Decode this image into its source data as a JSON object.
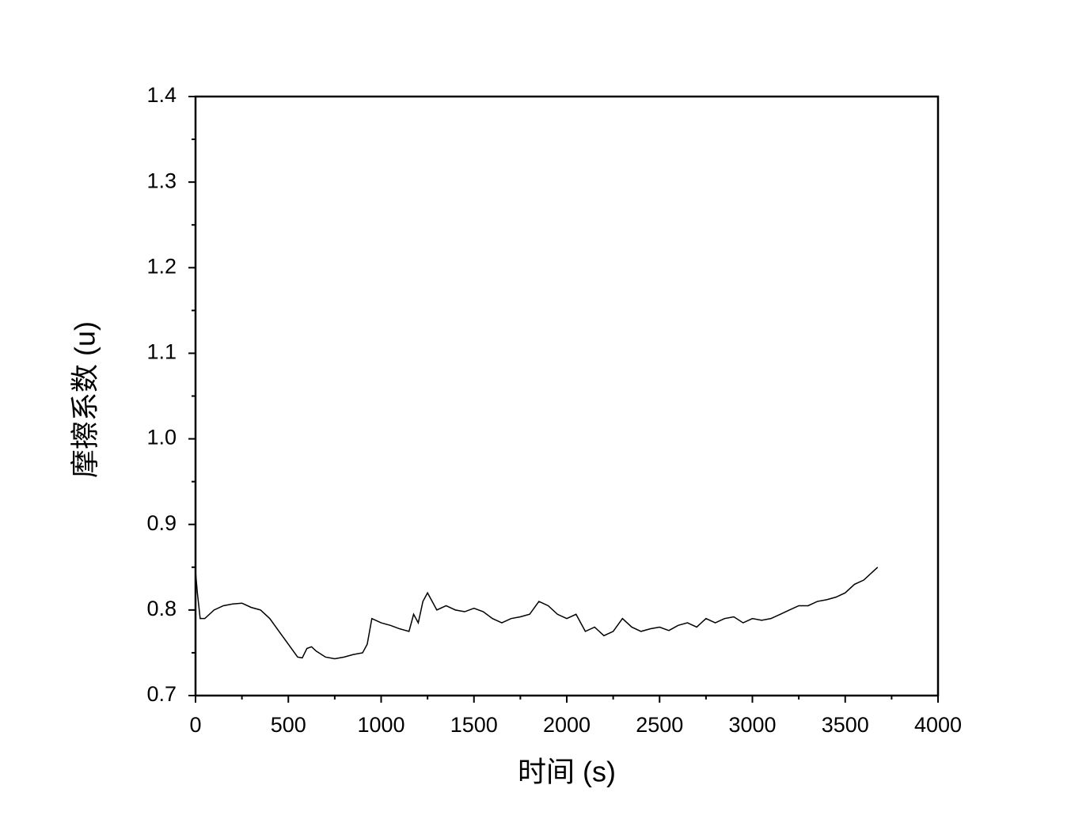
{
  "chart_data": {
    "type": "line",
    "xlabel": "时间 (s)",
    "ylabel": "摩擦系数 (u)",
    "xlim": [
      0,
      4000
    ],
    "ylim": [
      0.7,
      1.4
    ],
    "xticks": [
      0,
      500,
      1000,
      1500,
      2000,
      2500,
      3000,
      3500,
      4000
    ],
    "yticks": [
      0.7,
      0.8,
      0.9,
      {
        "value": 1,
        "label": "1.0"
      },
      1.1,
      1.2,
      1.3,
      1.4
    ],
    "xminorticks": [
      250,
      750,
      1250,
      1750,
      2250,
      2750,
      3250,
      3750
    ],
    "yminorticks": [
      0.75,
      0.85,
      0.95,
      1.05,
      1.15,
      1.25,
      1.35
    ],
    "x": [
      0,
      10,
      25,
      50,
      100,
      150,
      200,
      250,
      300,
      350,
      400,
      450,
      500,
      550,
      575,
      600,
      625,
      650,
      700,
      750,
      800,
      850,
      900,
      925,
      950,
      1000,
      1050,
      1100,
      1150,
      1175,
      1200,
      1225,
      1250,
      1300,
      1350,
      1400,
      1450,
      1500,
      1550,
      1600,
      1650,
      1700,
      1750,
      1800,
      1850,
      1900,
      1950,
      2000,
      2050,
      2100,
      2150,
      2200,
      2250,
      2300,
      2350,
      2400,
      2450,
      2500,
      2550,
      2600,
      2650,
      2700,
      2750,
      2800,
      2850,
      2900,
      2950,
      3000,
      3050,
      3100,
      3150,
      3200,
      3250,
      3300,
      3350,
      3400,
      3450,
      3500,
      3550,
      3600,
      3650,
      3675
    ],
    "series": [
      {
        "name": "摩擦系数",
        "color": "#000000",
        "values": [
          0.845,
          0.82,
          0.79,
          0.79,
          0.8,
          0.805,
          0.807,
          0.808,
          0.803,
          0.8,
          0.79,
          0.775,
          0.76,
          0.745,
          0.744,
          0.755,
          0.757,
          0.752,
          0.745,
          0.743,
          0.745,
          0.748,
          0.75,
          0.76,
          0.79,
          0.785,
          0.782,
          0.778,
          0.775,
          0.795,
          0.785,
          0.81,
          0.82,
          0.8,
          0.805,
          0.8,
          0.798,
          0.802,
          0.798,
          0.79,
          0.785,
          0.79,
          0.792,
          0.795,
          0.81,
          0.805,
          0.795,
          0.79,
          0.795,
          0.775,
          0.78,
          0.77,
          0.775,
          0.79,
          0.78,
          0.775,
          0.778,
          0.78,
          0.776,
          0.782,
          0.785,
          0.78,
          0.79,
          0.785,
          0.79,
          0.792,
          0.785,
          0.79,
          0.788,
          0.79,
          0.795,
          0.8,
          0.805,
          0.805,
          0.81,
          0.812,
          0.815,
          0.82,
          0.83,
          0.835,
          0.845,
          0.85
        ]
      }
    ]
  }
}
